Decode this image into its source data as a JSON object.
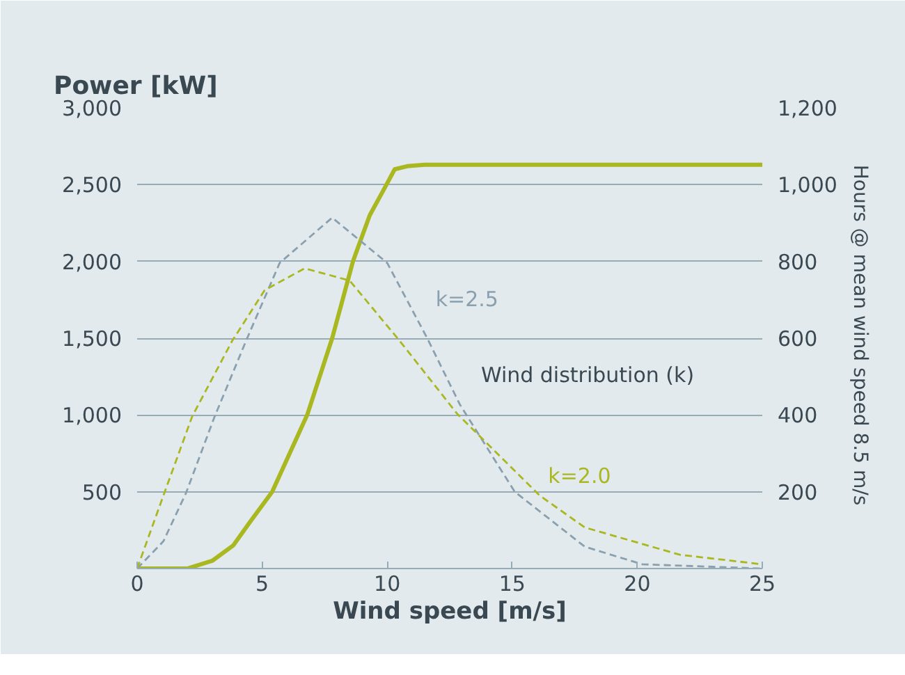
{
  "chart_data": {
    "type": "line",
    "title": "Power [kW]",
    "xlabel": "Wind speed [m/s]",
    "y2label": "Hours @ mean wind  speed 8.5 m/s",
    "xlim": [
      0,
      25
    ],
    "xticks": [
      0,
      5,
      10,
      15,
      20,
      25
    ],
    "ylim": [
      0,
      3000
    ],
    "yticks": [
      500,
      {
        "value": 1000,
        "label": "1,000"
      },
      {
        "value": 1500,
        "label": "1,500"
      },
      {
        "value": 2000,
        "label": "2,000"
      },
      {
        "value": 2500,
        "label": "2,500"
      },
      {
        "value": 3000,
        "label": "3,000"
      }
    ],
    "y2lim": [
      0,
      1200
    ],
    "y2ticks": [
      200,
      400,
      600,
      800,
      {
        "value": 1000,
        "label": "1,000"
      },
      {
        "value": 1200,
        "label": "1,200"
      }
    ],
    "grid": "y",
    "legend": false,
    "annotations": [
      "Wind distribution (k)"
    ],
    "series": [
      {
        "color": "#a9b820",
        "line_style": "solid",
        "x": [
          0,
          2,
          3,
          3.84,
          4.5,
          5.4,
          6.1,
          6.8,
          7.8,
          8.63,
          9.3,
          9.97,
          10.3,
          10.8,
          11.5,
          25
        ],
        "values": [
          0,
          0,
          50,
          150,
          300,
          500,
          750,
          1000,
          1500,
          2000,
          2300,
          2500,
          2600,
          2620,
          2630,
          2630
        ]
      },
      {
        "name": "k=2.5",
        "color": "#8aa0ae",
        "line_style": "dashed",
        "axis": "y2",
        "x": [
          0,
          1.05,
          1.95,
          3.1,
          4.4,
          5.7,
          7.8,
          10,
          11.6,
          12.9,
          15.1,
          17.9,
          20.2,
          25
        ],
        "values": [
          0,
          71,
          196,
          396,
          600,
          796,
          914,
          796,
          600,
          428,
          200,
          57,
          11,
          0
        ]
      },
      {
        "name": "k=2.0",
        "color": "#a9b820",
        "line_style": "dashed",
        "axis": "y2",
        "x": [
          0,
          1.05,
          2.2,
          3.8,
          5.1,
          6.7,
          8.5,
          10.5,
          12.8,
          16.1,
          17.9,
          21.7,
          25
        ],
        "values": [
          0,
          190,
          396,
          593,
          725,
          782,
          750,
          593,
          403,
          190,
          107,
          36,
          11
        ]
      }
    ]
  }
}
